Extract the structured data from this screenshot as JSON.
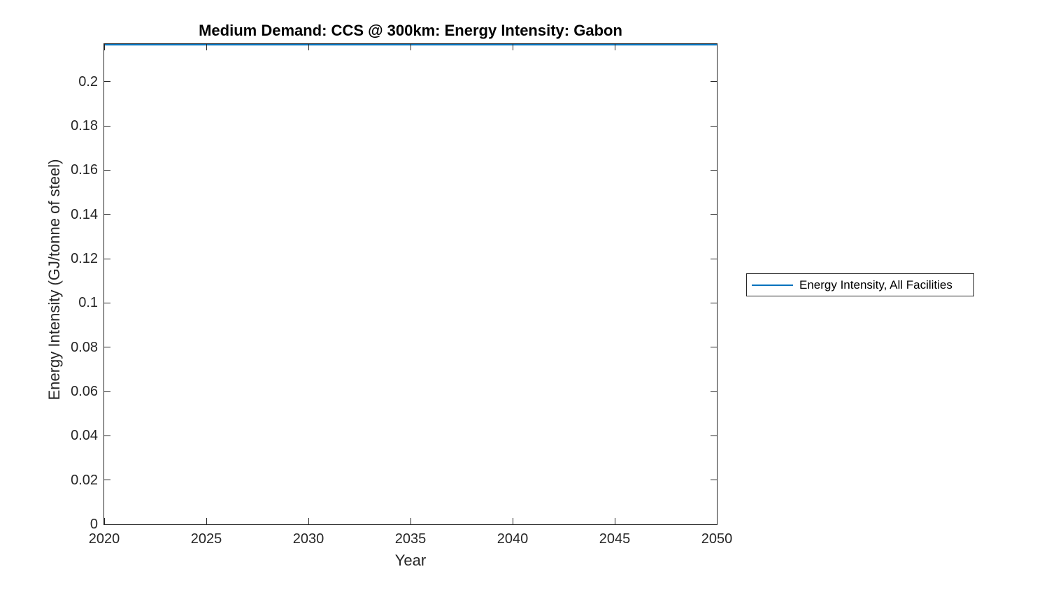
{
  "chart_data": {
    "type": "line",
    "title": "Medium Demand: CCS @ 300km: Energy Intensity: Gabon",
    "xlabel": "Year",
    "ylabel": "Energy Intensity (GJ/tonne of steel)",
    "xlim": [
      2020,
      2050
    ],
    "ylim": [
      0,
      0.217
    ],
    "x_ticks": [
      2020,
      2025,
      2030,
      2035,
      2040,
      2045,
      2050
    ],
    "x_tick_labels": [
      "2020",
      "2025",
      "2030",
      "2035",
      "2040",
      "2045",
      "2050"
    ],
    "y_ticks": [
      0,
      0.02,
      0.04,
      0.06,
      0.08,
      0.1,
      0.12,
      0.14,
      0.16,
      0.18,
      0.2
    ],
    "y_tick_labels": [
      "0",
      "0.02",
      "0.04",
      "0.06",
      "0.08",
      "0.1",
      "0.12",
      "0.14",
      "0.16",
      "0.18",
      "0.2"
    ],
    "grid": false,
    "axis_color": "#262626",
    "series": [
      {
        "name": "Energy Intensity, All Facilities",
        "color": "#0072BD",
        "x": [
          2020,
          2050
        ],
        "y": [
          0.217,
          0.217
        ]
      }
    ],
    "legend": {
      "position": "right-outside",
      "entries": [
        {
          "label": "Energy Intensity, All Facilities",
          "color": "#0072BD"
        }
      ]
    }
  }
}
